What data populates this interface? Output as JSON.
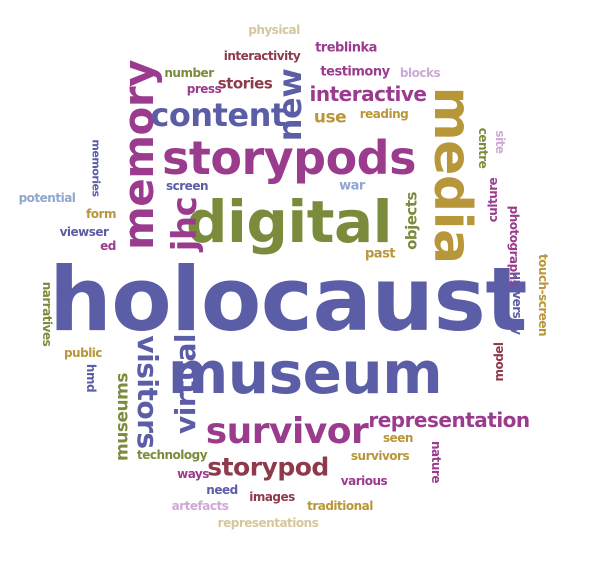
{
  "palette": {
    "blue": "#5b5ea6",
    "purple": "#9b3b8e",
    "olive": "#7a8c3c",
    "gold": "#b8963a",
    "maroon": "#8e3a4a",
    "lightblue": "#8fa7cf",
    "lightpurple": "#cfa9d6",
    "lightgold": "#d6c79a"
  },
  "words": [
    {
      "text": "holocaust",
      "color": "#5b5ea6"
    },
    {
      "text": "museum",
      "color": "#5b5ea6"
    },
    {
      "text": "digital",
      "color": "#7a8c3c"
    },
    {
      "text": "storypods",
      "color": "#9b3b8e"
    },
    {
      "text": "media",
      "color": "#b8963a"
    },
    {
      "text": "memory",
      "color": "#9b3b8e"
    },
    {
      "text": "content",
      "color": "#5b5ea6"
    },
    {
      "text": "new",
      "color": "#5b5ea6"
    },
    {
      "text": "survivor",
      "color": "#9b3b8e"
    },
    {
      "text": "storypod",
      "color": "#8e3a4a"
    },
    {
      "text": "visitors",
      "color": "#5b5ea6"
    },
    {
      "text": "virtual",
      "color": "#5b5ea6"
    },
    {
      "text": "jhc",
      "color": "#9b3b8e"
    },
    {
      "text": "representation",
      "color": "#9b3b8e"
    },
    {
      "text": "interactive",
      "color": "#9b3b8e"
    },
    {
      "text": "museums",
      "color": "#7a8c3c"
    },
    {
      "text": "stories",
      "color": "#8e3a4a"
    },
    {
      "text": "testimony",
      "color": "#9b3b8e"
    },
    {
      "text": "treblinka",
      "color": "#9b3b8e"
    },
    {
      "text": "interactivity",
      "color": "#8e3a4a"
    },
    {
      "text": "physical",
      "color": "#d6c79a"
    },
    {
      "text": "number",
      "color": "#7a8c3c"
    },
    {
      "text": "press",
      "color": "#9b3b8e"
    },
    {
      "text": "blocks",
      "color": "#cfa9d6"
    },
    {
      "text": "use",
      "color": "#b8963a"
    },
    {
      "text": "reading",
      "color": "#b8963a"
    },
    {
      "text": "memories",
      "color": "#5b5ea6"
    },
    {
      "text": "potential",
      "color": "#8fa7cf"
    },
    {
      "text": "screen",
      "color": "#5b5ea6"
    },
    {
      "text": "form",
      "color": "#b8963a"
    },
    {
      "text": "viewser",
      "color": "#5b5ea6"
    },
    {
      "text": "ed",
      "color": "#9b3b8e"
    },
    {
      "text": "war",
      "color": "#8fa7cf"
    },
    {
      "text": "objects",
      "color": "#7a8c3c"
    },
    {
      "text": "past",
      "color": "#b8963a"
    },
    {
      "text": "centre",
      "color": "#7a8c3c"
    },
    {
      "text": "site",
      "color": "#cfa9d6"
    },
    {
      "text": "culture",
      "color": "#9b3b8e"
    },
    {
      "text": "photographs",
      "color": "#9b3b8e"
    },
    {
      "text": "touch-screen",
      "color": "#b8963a"
    },
    {
      "text": "university",
      "color": "#5b5ea6"
    },
    {
      "text": "model",
      "color": "#8e3a4a"
    },
    {
      "text": "nature",
      "color": "#9b3b8e"
    },
    {
      "text": "narratives",
      "color": "#7a8c3c"
    },
    {
      "text": "public",
      "color": "#b8963a"
    },
    {
      "text": "hmd",
      "color": "#5b5ea6"
    },
    {
      "text": "technology",
      "color": "#7a8c3c"
    },
    {
      "text": "ways",
      "color": "#9b3b8e"
    },
    {
      "text": "need",
      "color": "#5b5ea6"
    },
    {
      "text": "artefacts",
      "color": "#cfa9d6"
    },
    {
      "text": "images",
      "color": "#8e3a4a"
    },
    {
      "text": "traditional",
      "color": "#b8963a"
    },
    {
      "text": "representations",
      "color": "#d6c79a"
    },
    {
      "text": "seen",
      "color": "#b8963a"
    },
    {
      "text": "survivors",
      "color": "#b8963a"
    },
    {
      "text": "various",
      "color": "#9b3b8e"
    }
  ]
}
